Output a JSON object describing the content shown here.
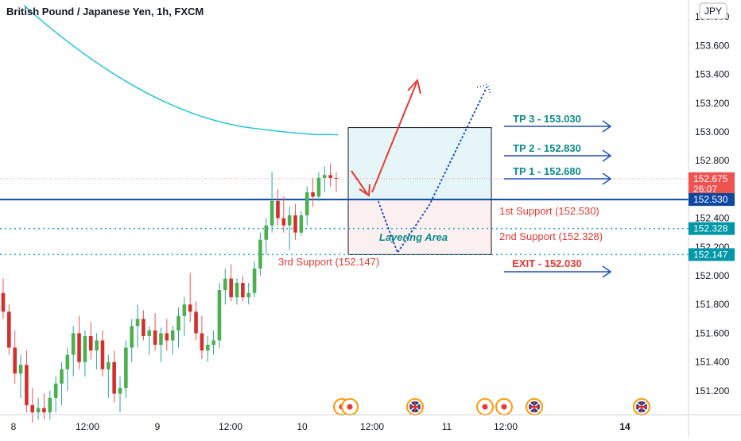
{
  "header": {
    "title": "British Pound / Japanese Yen, 1h, FXCM",
    "currency_badge": "JPY"
  },
  "colors": {
    "bull": "#26a69a",
    "bear": "#ef5350",
    "bull_body": "#4caf50",
    "bear_body": "#d32f2f",
    "ma": "#26c6da",
    "support_line": "#0d47a1",
    "arrow": "#1e4fc2",
    "tp_text": "#0b8a8a",
    "red_text": "#e53935",
    "price_label": "#ef5350"
  },
  "chart_data": {
    "type": "candlestick",
    "title": "British Pound / Japanese Yen, 1h, FXCM",
    "ylim": [
      151.0,
      153.9
    ],
    "y_ticks": [
      "151.200",
      "151.400",
      "151.600",
      "151.800",
      "152.000",
      "152.200",
      "152.400",
      "152.600",
      "152.800",
      "153.000",
      "153.200",
      "153.400",
      "153.600",
      "153.800"
    ],
    "x_ticks": [
      "8",
      "12:00",
      "9",
      "12:00",
      "10",
      "12:00",
      "11",
      "12:00",
      "14"
    ],
    "candles": [
      [
        151.88,
        151.98,
        151.7,
        151.75
      ],
      [
        151.75,
        151.8,
        151.45,
        151.5
      ],
      [
        151.5,
        151.62,
        151.25,
        151.32
      ],
      [
        151.32,
        151.45,
        151.15,
        151.38
      ],
      [
        151.38,
        151.48,
        151.05,
        151.1
      ],
      [
        151.1,
        151.22,
        150.98,
        151.05
      ],
      [
        151.05,
        151.15,
        151.0,
        151.08
      ],
      [
        151.08,
        151.18,
        151.0,
        151.05
      ],
      [
        151.05,
        151.2,
        151.0,
        151.15
      ],
      [
        151.15,
        151.3,
        151.05,
        151.25
      ],
      [
        151.25,
        151.4,
        151.1,
        151.35
      ],
      [
        151.35,
        151.5,
        151.2,
        151.45
      ],
      [
        151.45,
        151.65,
        151.3,
        151.6
      ],
      [
        151.6,
        151.72,
        151.35,
        151.4
      ],
      [
        151.4,
        151.62,
        151.3,
        151.58
      ],
      [
        151.58,
        151.68,
        151.42,
        151.48
      ],
      [
        151.48,
        151.6,
        151.35,
        151.55
      ],
      [
        151.55,
        151.62,
        151.3,
        151.35
      ],
      [
        151.35,
        151.45,
        151.15,
        151.4
      ],
      [
        151.4,
        151.48,
        151.12,
        151.18
      ],
      [
        151.18,
        151.3,
        151.05,
        151.22
      ],
      [
        151.22,
        151.55,
        151.15,
        151.5
      ],
      [
        151.5,
        151.7,
        151.4,
        151.65
      ],
      [
        151.65,
        151.8,
        151.5,
        151.7
      ],
      [
        151.7,
        151.76,
        151.55,
        151.58
      ],
      [
        151.58,
        151.65,
        151.45,
        151.62
      ],
      [
        151.62,
        151.74,
        151.48,
        151.52
      ],
      [
        151.52,
        151.64,
        151.4,
        151.6
      ],
      [
        151.6,
        151.7,
        151.48,
        151.55
      ],
      [
        151.55,
        151.65,
        151.45,
        151.62
      ],
      [
        151.62,
        151.78,
        151.5,
        151.72
      ],
      [
        151.72,
        151.85,
        151.58,
        151.8
      ],
      [
        151.8,
        152.02,
        151.68,
        151.75
      ],
      [
        151.75,
        151.82,
        151.55,
        151.6
      ],
      [
        151.6,
        151.72,
        151.42,
        151.48
      ],
      [
        151.48,
        151.58,
        151.4,
        151.52
      ],
      [
        151.52,
        151.62,
        151.45,
        151.55
      ],
      [
        151.55,
        151.95,
        151.5,
        151.9
      ],
      [
        151.9,
        152.05,
        151.8,
        151.98
      ],
      [
        151.98,
        152.08,
        151.82,
        151.85
      ],
      [
        151.85,
        151.98,
        151.8,
        151.95
      ],
      [
        151.95,
        152.0,
        151.82,
        151.85
      ],
      [
        151.85,
        151.95,
        151.8,
        151.88
      ],
      [
        151.88,
        152.1,
        151.85,
        152.05
      ],
      [
        152.05,
        152.3,
        152.0,
        152.25
      ],
      [
        152.25,
        152.4,
        152.15,
        152.35
      ],
      [
        152.35,
        152.72,
        152.3,
        152.52
      ],
      [
        152.52,
        152.6,
        152.35,
        152.4
      ],
      [
        152.4,
        152.55,
        152.3,
        152.35
      ],
      [
        152.35,
        152.48,
        152.18,
        152.42
      ],
      [
        152.42,
        152.5,
        152.25,
        152.3
      ],
      [
        152.3,
        152.45,
        152.28,
        152.42
      ],
      [
        152.42,
        152.62,
        152.35,
        152.58
      ],
      [
        152.58,
        152.68,
        152.48,
        152.55
      ],
      [
        152.55,
        152.72,
        152.52,
        152.68
      ],
      [
        152.68,
        152.76,
        152.58,
        152.7
      ],
      [
        152.7,
        152.78,
        152.62,
        152.68
      ],
      [
        152.68,
        152.72,
        152.58,
        152.675
      ]
    ],
    "moving_average": {
      "from_price": 153.88,
      "to_price": 152.98
    },
    "levels": [
      {
        "label": "TP 3 - 153.030",
        "value": 153.03
      },
      {
        "label": "TP 2 - 152.830",
        "value": 152.83
      },
      {
        "label": "TP 1 - 152.680",
        "value": 152.68
      },
      {
        "label": "1st Support (152.530)",
        "value": 152.53
      },
      {
        "label": "2nd Support (152.328)",
        "value": 152.328
      },
      {
        "label": "3rd Support (152.147)",
        "value": 152.147
      },
      {
        "label": "EXIT - 152.030",
        "value": 152.03
      }
    ],
    "zone_label": "Layering Area",
    "price_badges": [
      {
        "text": "152.675",
        "sub": "26:07",
        "kind": "current"
      },
      {
        "text": "152.530",
        "kind": "support"
      },
      {
        "text": "152.328",
        "kind": "dotted"
      },
      {
        "text": "152.147",
        "kind": "dotted"
      }
    ],
    "event_markers": [
      "jp",
      "jp",
      "uk",
      "jp",
      "jp",
      "uk",
      "uk"
    ]
  }
}
